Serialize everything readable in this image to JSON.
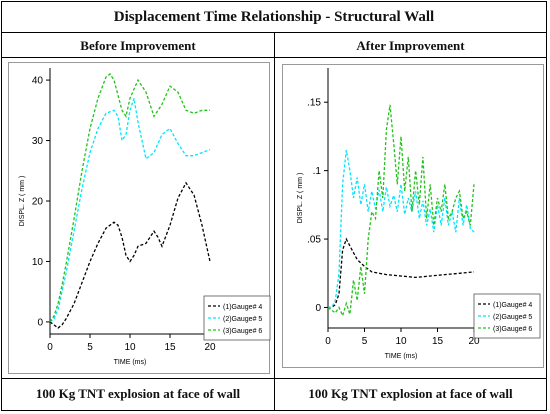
{
  "title": "Displacement Time Relationship - Structural Wall",
  "panels": [
    {
      "heading": "Before Improvement",
      "caption": "100 Kg TNT explosion at face of wall"
    },
    {
      "heading": "After Improvement",
      "caption": "100 Kg TNT explosion at face of wall"
    }
  ],
  "chart_data": [
    {
      "type": "line",
      "xlabel": "TIME (ms)",
      "ylabel": "DISPL. Z ( mm )",
      "xlim": [
        0,
        20
      ],
      "ylim": [
        -2,
        42
      ],
      "xticks": [
        0,
        5,
        10,
        15,
        20
      ],
      "yticks": [
        0,
        10,
        20,
        30,
        40
      ],
      "grid": false,
      "legend": "bottom-right",
      "series": [
        {
          "name": "(1)Gauge# 4",
          "color": "#000000",
          "x": [
            0,
            0.5,
            1,
            1.5,
            2,
            3,
            4,
            5,
            6,
            7,
            8,
            8.5,
            9,
            9.5,
            10,
            10.5,
            11,
            12,
            13,
            13.5,
            14,
            15,
            16,
            17,
            18,
            19,
            20
          ],
          "y": [
            0,
            -0.5,
            -1,
            -0.5,
            0.5,
            3,
            6.5,
            10,
            13,
            15.5,
            16.5,
            16,
            14,
            11,
            10,
            11,
            12.5,
            13,
            15,
            14,
            12.5,
            16,
            20.5,
            23,
            21,
            16,
            10
          ]
        },
        {
          "name": "(2)Gauge# 5",
          "color": "#00e5ff",
          "x": [
            0,
            0.5,
            1,
            1.5,
            2,
            3,
            4,
            5,
            6,
            7,
            8,
            8.5,
            9,
            9.5,
            10,
            10.5,
            11,
            12,
            13,
            14,
            15,
            16,
            17,
            18,
            19,
            20
          ],
          "y": [
            0,
            0.5,
            2,
            5,
            8,
            15,
            22,
            28,
            32,
            34.5,
            35,
            34,
            30,
            31,
            35,
            37,
            33,
            27,
            28,
            31,
            32,
            29.5,
            27.5,
            27.5,
            28,
            28.5
          ]
        },
        {
          "name": "(3)Gauge# 6",
          "color": "#22c21a",
          "x": [
            0,
            0.5,
            1,
            1.5,
            2,
            3,
            4,
            5,
            6,
            7,
            7.5,
            8,
            9,
            9.5,
            10,
            11,
            12,
            13,
            14,
            15,
            16,
            17,
            18,
            19,
            20
          ],
          "y": [
            0,
            1,
            3,
            6,
            9.5,
            17,
            25,
            32,
            37,
            40.5,
            41,
            40,
            35,
            34,
            37,
            40,
            38,
            34,
            36,
            39,
            38,
            35,
            34.5,
            35,
            35
          ]
        }
      ]
    },
    {
      "type": "line",
      "xlabel": "TIME (ms)",
      "ylabel": "DISPL. Z ( mm )",
      "xlim": [
        0,
        20
      ],
      "ylim": [
        -0.015,
        0.175
      ],
      "xticks": [
        0,
        5,
        10,
        15,
        20
      ],
      "yticks": [
        0,
        0.05,
        0.1,
        0.15
      ],
      "grid": false,
      "legend": "bottom-right",
      "series": [
        {
          "name": "(1)Gauge# 4",
          "color": "#000000",
          "x": [
            0,
            0.5,
            1,
            1.5,
            2,
            2.5,
            3,
            4,
            5,
            6,
            8,
            10,
            12,
            14,
            16,
            18,
            20
          ],
          "y": [
            0,
            0,
            0.002,
            0.01,
            0.042,
            0.05,
            0.045,
            0.035,
            0.03,
            0.026,
            0.024,
            0.023,
            0.022,
            0.023,
            0.024,
            0.025,
            0.026
          ]
        },
        {
          "name": "(2)Gauge# 5",
          "color": "#00e5ff",
          "x": [
            0,
            0.5,
            1,
            1.5,
            2,
            2.5,
            3,
            3.5,
            4,
            4.5,
            5,
            5.5,
            6,
            6.5,
            7,
            7.5,
            8,
            8.5,
            9,
            9.5,
            10,
            10.5,
            11,
            11.5,
            12,
            12.5,
            13,
            13.5,
            14,
            14.5,
            15,
            15.5,
            16,
            16.5,
            17,
            17.5,
            18,
            18.5,
            19,
            19.5,
            20
          ],
          "y": [
            0,
            0,
            0.005,
            0.025,
            0.09,
            0.115,
            0.1,
            0.08,
            0.095,
            0.075,
            0.09,
            0.07,
            0.085,
            0.072,
            0.086,
            0.07,
            0.088,
            0.074,
            0.082,
            0.07,
            0.09,
            0.068,
            0.08,
            0.07,
            0.085,
            0.065,
            0.078,
            0.06,
            0.072,
            0.055,
            0.075,
            0.06,
            0.08,
            0.06,
            0.07,
            0.055,
            0.08,
            0.06,
            0.075,
            0.058,
            0.055
          ]
        },
        {
          "name": "(3)Gauge# 6",
          "color": "#22c21a",
          "x": [
            0,
            0.5,
            1,
            1.5,
            2,
            2.5,
            3,
            3.5,
            4,
            4.5,
            5,
            5.5,
            6,
            6.5,
            7,
            7.5,
            8,
            8.5,
            9,
            9.5,
            10,
            10.5,
            11,
            11.5,
            12,
            12.5,
            13,
            13.5,
            14,
            14.5,
            15,
            15.5,
            16,
            16.5,
            17,
            17.5,
            18,
            18.5,
            19,
            19.5,
            20
          ],
          "y": [
            0,
            -0.002,
            -0.004,
            0,
            -0.006,
            0.003,
            -0.005,
            0.02,
            0.005,
            0.03,
            0.01,
            0.05,
            0.07,
            0.065,
            0.1,
            0.08,
            0.13,
            0.148,
            0.12,
            0.09,
            0.125,
            0.085,
            0.11,
            0.07,
            0.1,
            0.075,
            0.11,
            0.065,
            0.09,
            0.06,
            0.08,
            0.07,
            0.09,
            0.065,
            0.07,
            0.08,
            0.085,
            0.065,
            0.07,
            0.06,
            0.09
          ]
        }
      ]
    }
  ]
}
